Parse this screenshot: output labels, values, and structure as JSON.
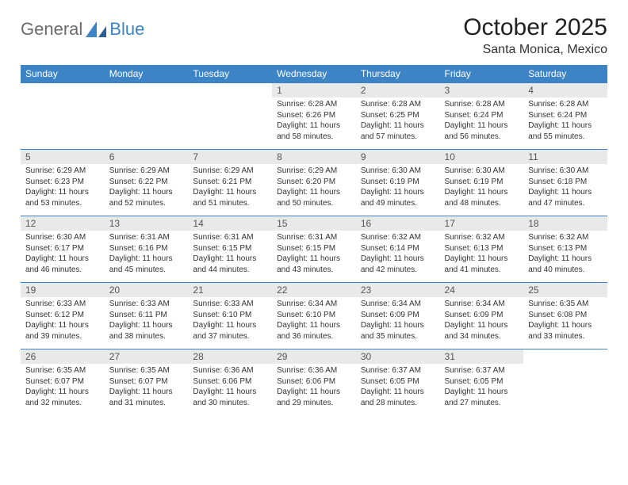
{
  "logo": {
    "text1": "General",
    "text2": "Blue"
  },
  "header": {
    "title": "October 2025",
    "location": "Santa Monica, Mexico"
  },
  "style": {
    "header_bg": "#3d84c6",
    "header_fg": "#ffffff",
    "daynum_bg": "#e9e9e9",
    "row_border": "#3d84c6",
    "body_bg": "#ffffff",
    "text_color": "#333333",
    "title_fontsize": 30,
    "location_fontsize": 16,
    "th_fontsize": 12,
    "cell_fontsize": 10
  },
  "calendar": {
    "weekdays": [
      "Sunday",
      "Monday",
      "Tuesday",
      "Wednesday",
      "Thursday",
      "Friday",
      "Saturday"
    ],
    "weeks": [
      [
        null,
        null,
        null,
        {
          "n": "1",
          "sr": "6:28 AM",
          "ss": "6:26 PM",
          "dl": "11 hours and 58 minutes."
        },
        {
          "n": "2",
          "sr": "6:28 AM",
          "ss": "6:25 PM",
          "dl": "11 hours and 57 minutes."
        },
        {
          "n": "3",
          "sr": "6:28 AM",
          "ss": "6:24 PM",
          "dl": "11 hours and 56 minutes."
        },
        {
          "n": "4",
          "sr": "6:28 AM",
          "ss": "6:24 PM",
          "dl": "11 hours and 55 minutes."
        }
      ],
      [
        {
          "n": "5",
          "sr": "6:29 AM",
          "ss": "6:23 PM",
          "dl": "11 hours and 53 minutes."
        },
        {
          "n": "6",
          "sr": "6:29 AM",
          "ss": "6:22 PM",
          "dl": "11 hours and 52 minutes."
        },
        {
          "n": "7",
          "sr": "6:29 AM",
          "ss": "6:21 PM",
          "dl": "11 hours and 51 minutes."
        },
        {
          "n": "8",
          "sr": "6:29 AM",
          "ss": "6:20 PM",
          "dl": "11 hours and 50 minutes."
        },
        {
          "n": "9",
          "sr": "6:30 AM",
          "ss": "6:19 PM",
          "dl": "11 hours and 49 minutes."
        },
        {
          "n": "10",
          "sr": "6:30 AM",
          "ss": "6:19 PM",
          "dl": "11 hours and 48 minutes."
        },
        {
          "n": "11",
          "sr": "6:30 AM",
          "ss": "6:18 PM",
          "dl": "11 hours and 47 minutes."
        }
      ],
      [
        {
          "n": "12",
          "sr": "6:30 AM",
          "ss": "6:17 PM",
          "dl": "11 hours and 46 minutes."
        },
        {
          "n": "13",
          "sr": "6:31 AM",
          "ss": "6:16 PM",
          "dl": "11 hours and 45 minutes."
        },
        {
          "n": "14",
          "sr": "6:31 AM",
          "ss": "6:15 PM",
          "dl": "11 hours and 44 minutes."
        },
        {
          "n": "15",
          "sr": "6:31 AM",
          "ss": "6:15 PM",
          "dl": "11 hours and 43 minutes."
        },
        {
          "n": "16",
          "sr": "6:32 AM",
          "ss": "6:14 PM",
          "dl": "11 hours and 42 minutes."
        },
        {
          "n": "17",
          "sr": "6:32 AM",
          "ss": "6:13 PM",
          "dl": "11 hours and 41 minutes."
        },
        {
          "n": "18",
          "sr": "6:32 AM",
          "ss": "6:13 PM",
          "dl": "11 hours and 40 minutes."
        }
      ],
      [
        {
          "n": "19",
          "sr": "6:33 AM",
          "ss": "6:12 PM",
          "dl": "11 hours and 39 minutes."
        },
        {
          "n": "20",
          "sr": "6:33 AM",
          "ss": "6:11 PM",
          "dl": "11 hours and 38 minutes."
        },
        {
          "n": "21",
          "sr": "6:33 AM",
          "ss": "6:10 PM",
          "dl": "11 hours and 37 minutes."
        },
        {
          "n": "22",
          "sr": "6:34 AM",
          "ss": "6:10 PM",
          "dl": "11 hours and 36 minutes."
        },
        {
          "n": "23",
          "sr": "6:34 AM",
          "ss": "6:09 PM",
          "dl": "11 hours and 35 minutes."
        },
        {
          "n": "24",
          "sr": "6:34 AM",
          "ss": "6:09 PM",
          "dl": "11 hours and 34 minutes."
        },
        {
          "n": "25",
          "sr": "6:35 AM",
          "ss": "6:08 PM",
          "dl": "11 hours and 33 minutes."
        }
      ],
      [
        {
          "n": "26",
          "sr": "6:35 AM",
          "ss": "6:07 PM",
          "dl": "11 hours and 32 minutes."
        },
        {
          "n": "27",
          "sr": "6:35 AM",
          "ss": "6:07 PM",
          "dl": "11 hours and 31 minutes."
        },
        {
          "n": "28",
          "sr": "6:36 AM",
          "ss": "6:06 PM",
          "dl": "11 hours and 30 minutes."
        },
        {
          "n": "29",
          "sr": "6:36 AM",
          "ss": "6:06 PM",
          "dl": "11 hours and 29 minutes."
        },
        {
          "n": "30",
          "sr": "6:37 AM",
          "ss": "6:05 PM",
          "dl": "11 hours and 28 minutes."
        },
        {
          "n": "31",
          "sr": "6:37 AM",
          "ss": "6:05 PM",
          "dl": "11 hours and 27 minutes."
        },
        null
      ]
    ],
    "labels": {
      "sunrise": "Sunrise:",
      "sunset": "Sunset:",
      "daylight": "Daylight:"
    }
  }
}
